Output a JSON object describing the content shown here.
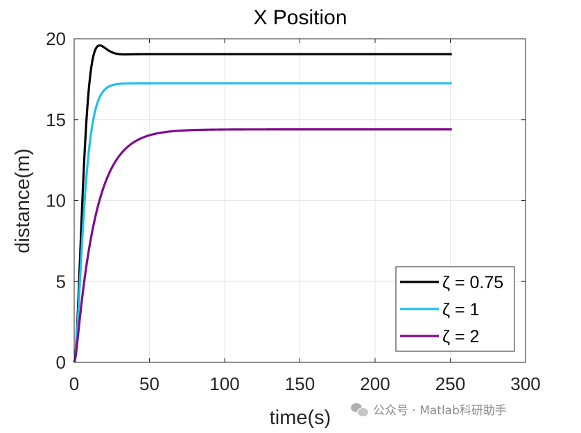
{
  "chart_data": {
    "type": "line",
    "title": "X Position",
    "xlabel": "time(s)",
    "ylabel": "distance(m)",
    "xlim": [
      0,
      300
    ],
    "ylim": [
      0,
      20
    ],
    "xticks": [
      0,
      50,
      100,
      150,
      200,
      250,
      300
    ],
    "yticks": [
      0,
      5,
      10,
      15,
      20
    ],
    "grid": true,
    "legend_position": "bottom-right",
    "x_end": 251,
    "series": [
      {
        "name": "ζ = 0.75",
        "color": "#000000",
        "final": 19.05,
        "zeta": 0.75
      },
      {
        "name": "ζ = 1",
        "color": "#1fbfef",
        "final": 17.25,
        "zeta": 1
      },
      {
        "name": "ζ = 2",
        "color": "#7e0a8e",
        "final": 14.4,
        "zeta": 2
      }
    ]
  },
  "watermark": {
    "text": "公众号 · Matlab科研助手",
    "icon": "wechat-icon"
  }
}
